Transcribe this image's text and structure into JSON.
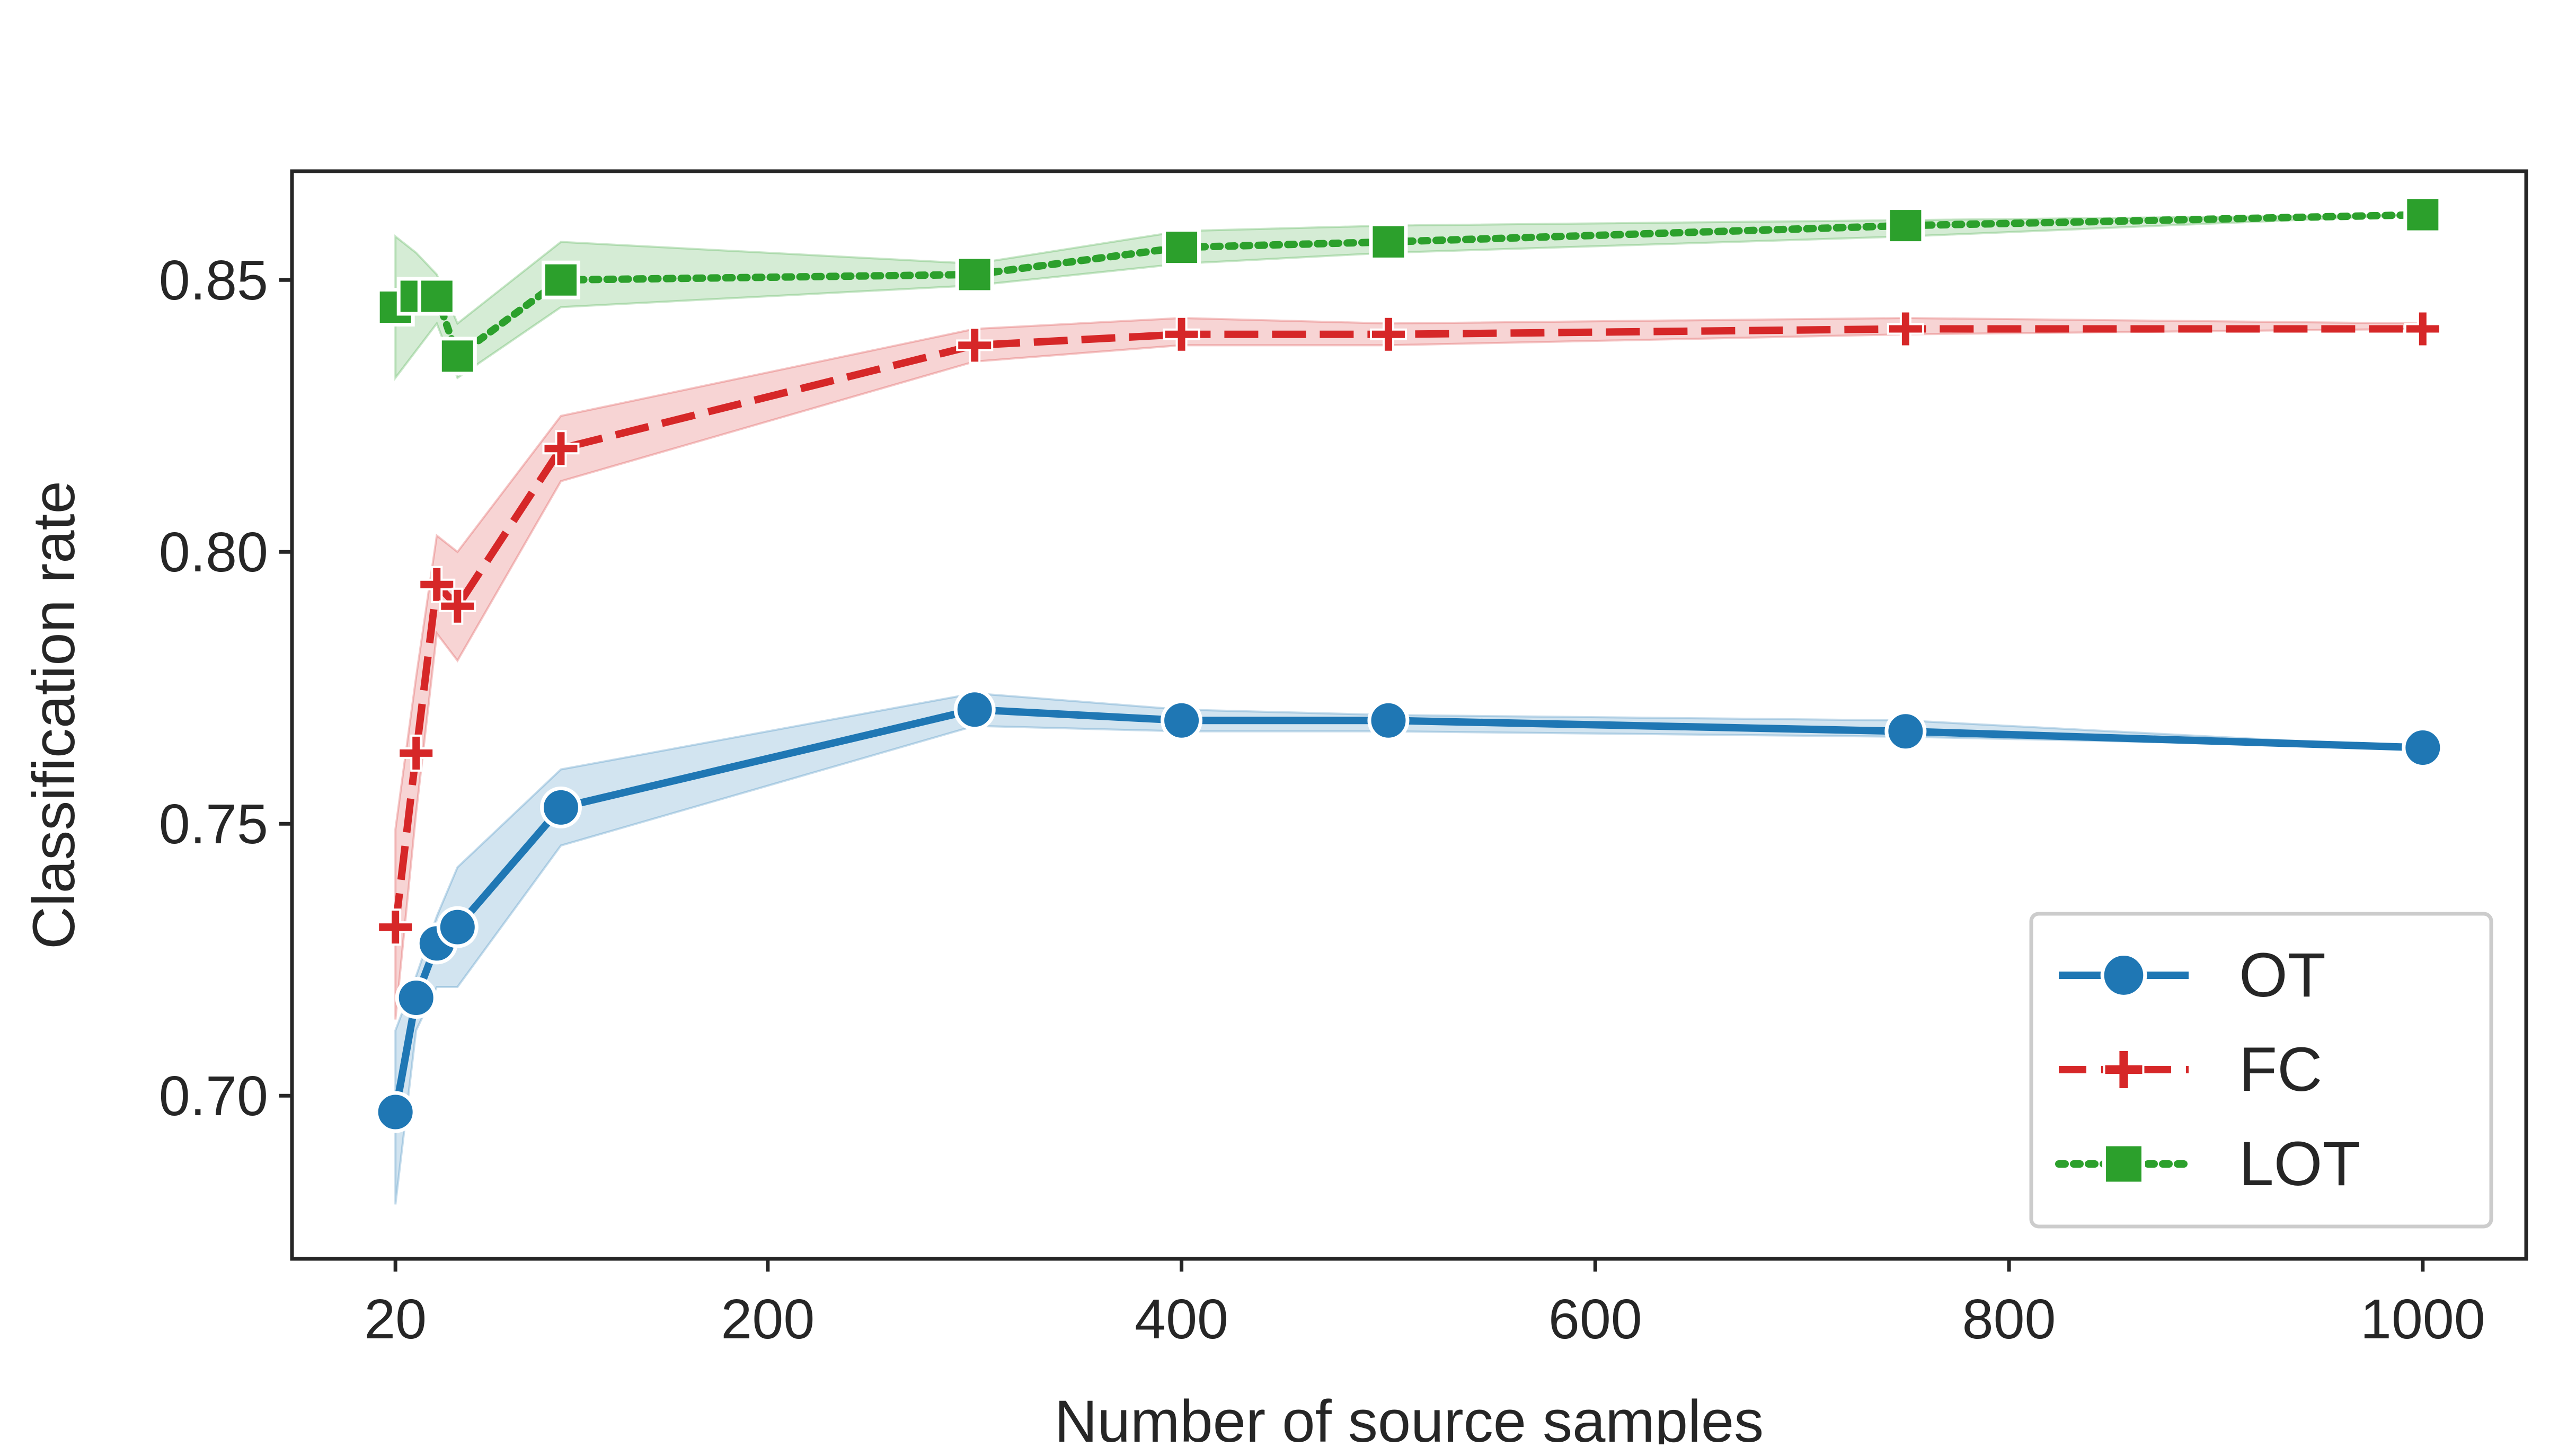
{
  "chart_data": {
    "type": "line",
    "title": "",
    "xlabel": "Number of source samples",
    "ylabel": "Classification rate",
    "xlim": [
      -30,
      1050
    ],
    "ylim": [
      0.67,
      0.87
    ],
    "x_ticks": [
      20,
      200,
      400,
      600,
      800,
      1000
    ],
    "x_tick_labels": [
      "20",
      "200",
      "400",
      "600",
      "800",
      "1000"
    ],
    "y_ticks": [
      0.7,
      0.75,
      0.8,
      0.85
    ],
    "y_tick_labels": [
      "0.70",
      "0.75",
      "0.80",
      "0.85"
    ],
    "grid": false,
    "legend_position": "lower-right",
    "x": [
      20,
      30,
      40,
      50,
      100,
      300,
      400,
      500,
      750,
      1000
    ],
    "series": [
      {
        "name": "OT",
        "color": "#1f77b4",
        "marker": "circle",
        "line_style": "solid",
        "values": [
          0.697,
          0.718,
          0.728,
          0.731,
          0.753,
          0.771,
          0.769,
          0.769,
          0.767,
          0.764
        ],
        "lower": [
          0.68,
          0.712,
          0.72,
          0.72,
          0.746,
          0.768,
          0.767,
          0.767,
          0.766,
          0.764
        ],
        "upper": [
          0.712,
          0.722,
          0.733,
          0.742,
          0.76,
          0.774,
          0.771,
          0.77,
          0.769,
          0.764
        ]
      },
      {
        "name": "FC",
        "color": "#d62728",
        "marker": "plus",
        "line_style": "dashed",
        "values": [
          0.731,
          0.763,
          0.794,
          0.79,
          0.819,
          0.838,
          0.84,
          0.84,
          0.841,
          0.841
        ],
        "lower": [
          0.714,
          0.752,
          0.785,
          0.78,
          0.813,
          0.835,
          0.838,
          0.838,
          0.84,
          0.841
        ],
        "upper": [
          0.749,
          0.777,
          0.803,
          0.8,
          0.825,
          0.841,
          0.843,
          0.842,
          0.843,
          0.842
        ]
      },
      {
        "name": "LOT",
        "color": "#2ca02c",
        "marker": "square",
        "line_style": "dotted",
        "values": [
          0.845,
          0.847,
          0.847,
          0.836,
          0.85,
          0.851,
          0.856,
          0.857,
          0.86,
          0.862
        ],
        "lower": [
          0.832,
          0.837,
          0.842,
          0.832,
          0.845,
          0.849,
          0.853,
          0.855,
          0.858,
          0.862
        ],
        "upper": [
          0.858,
          0.855,
          0.851,
          0.842,
          0.857,
          0.853,
          0.859,
          0.86,
          0.861,
          0.862
        ]
      }
    ]
  }
}
